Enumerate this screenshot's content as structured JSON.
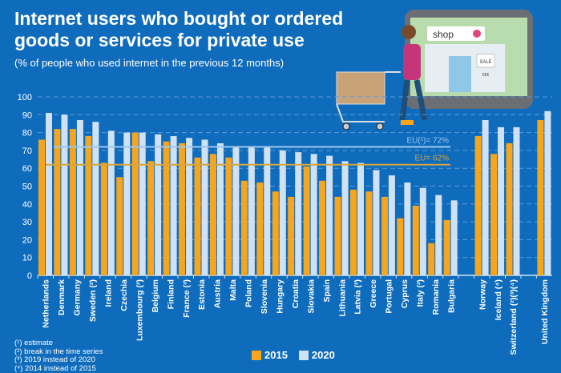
{
  "title": "Internet users who bought or ordered goods or services for private use",
  "subtitle": "(% of people who used internet in the previous 12 months)",
  "colors": {
    "background": "#0f6cbd",
    "series_2015": "#f7a51c",
    "series_2020": "#cfe2f3"
  },
  "illustration": {
    "shop_sign": "shop",
    "sale_sign": "SALE",
    "price_sign": "€€€"
  },
  "footnotes": [
    "(¹) estimate",
    "(²) break in the time series",
    "(³) 2019 instead of 2020",
    "(⁴) 2014 instead of 2015"
  ],
  "chart_data": {
    "type": "bar",
    "title": "Internet users who bought or ordered goods or services for private use",
    "ylim": [
      0,
      100
    ],
    "yticks": [
      0,
      10,
      20,
      30,
      40,
      50,
      60,
      70,
      80,
      90,
      100
    ],
    "grid": true,
    "legend": "bottom",
    "categories": [
      "Netherlands",
      "Denmark",
      "Germany",
      "Sweden (²)",
      "Ireland",
      "Czechia",
      "Luxembourg (²)",
      "Belgium",
      "Finland",
      "France (³)",
      "Estonia",
      "Austria",
      "Malta",
      "Poland",
      "Slovenia",
      "Hungary",
      "Croatia",
      "Slovakia",
      "Spain",
      "Lithuania",
      "Latvia (²)",
      "Greece",
      "Portugal",
      "Cyprus",
      "Italy (³)",
      "Romania",
      "Bulgaria",
      "",
      "Norway",
      "Iceland (⁴)",
      "Switzerland (²)(³)(⁴)",
      "",
      "United Kingdom"
    ],
    "series": [
      {
        "name": "2015",
        "values": [
          76,
          82,
          82,
          78,
          63,
          55,
          80,
          64,
          75,
          74,
          66,
          68,
          66,
          53,
          52,
          47,
          44,
          61,
          53,
          44,
          48,
          47,
          44,
          32,
          39,
          18,
          31,
          null,
          78,
          68,
          74,
          null,
          87
        ]
      },
      {
        "name": "2020",
        "values": [
          91,
          90,
          87,
          86,
          81,
          80,
          80,
          79,
          78,
          77,
          76,
          74,
          72,
          72,
          72,
          70,
          69,
          68,
          67,
          64,
          63,
          59,
          56,
          52,
          49,
          45,
          42,
          null,
          87,
          83,
          83,
          null,
          92
        ]
      }
    ],
    "reference_lines": [
      {
        "label": "EU(¹)= 72%",
        "value": 72,
        "series": "2020"
      },
      {
        "label": "EU= 62%",
        "value": 62,
        "series": "2015"
      }
    ]
  }
}
